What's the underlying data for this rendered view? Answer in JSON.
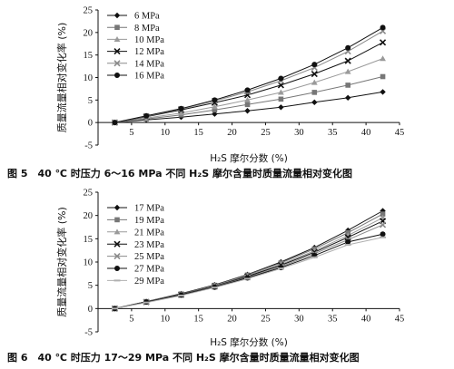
{
  "chart_data": [
    {
      "type": "line",
      "ylabel": "质量流量相对变化率 (%)",
      "xlabel": "H₂S 摩尔分数 (%)",
      "caption": "图 5　40 ℃ 时压力 6～16 MPa 不同 H₂S 摩尔含量时质量流量相对变化图",
      "xlim": [
        0,
        45
      ],
      "ylim": [
        -5,
        25
      ],
      "xticks": [
        5,
        10,
        15,
        20,
        25,
        30,
        35,
        40,
        45
      ],
      "yticks": [
        -5,
        0,
        5,
        10,
        15,
        20,
        25
      ],
      "x": [
        2.5,
        7.2,
        12.4,
        17.4,
        22.3,
        27.3,
        32.3,
        37.3,
        42.5
      ],
      "series": [
        {
          "name": "6 MPa",
          "marker": "diamond",
          "color": "#111111",
          "values": [
            0,
            0.6,
            1.2,
            1.9,
            2.6,
            3.4,
            4.5,
            5.5,
            6.8
          ]
        },
        {
          "name": "8 MPa",
          "marker": "square",
          "color": "#777777",
          "values": [
            0,
            0.8,
            1.7,
            2.8,
            4.0,
            5.2,
            6.7,
            8.3,
            10.2
          ]
        },
        {
          "name": "10 MPa",
          "marker": "triangle",
          "color": "#9a9a9a",
          "values": [
            0,
            1.0,
            2.1,
            3.5,
            5.0,
            6.7,
            8.9,
            11.3,
            14.2
          ]
        },
        {
          "name": "12 MPa",
          "marker": "x",
          "color": "#111111",
          "values": [
            0,
            1.3,
            2.8,
            4.4,
            6.1,
            8.3,
            10.8,
            13.7,
            17.8
          ]
        },
        {
          "name": "14 MPa",
          "marker": "x",
          "color": "#8a8a8a",
          "values": [
            0,
            1.4,
            3.0,
            4.8,
            6.8,
            9.3,
            12.2,
            15.8,
            20.3
          ]
        },
        {
          "name": "16 MPa",
          "marker": "circle",
          "color": "#111111",
          "values": [
            0,
            1.5,
            3.1,
            5.0,
            7.2,
            9.8,
            12.9,
            16.6,
            21.1
          ]
        }
      ]
    },
    {
      "type": "line",
      "ylabel": "质量流量相对变化率 (%)",
      "xlabel": "H₂S 摩尔分数 (%)",
      "caption": "图 6　40 ℃ 时压力 17～29 MPa 不同 H₂S 摩尔含量时质量流量相对变化图",
      "xlim": [
        0,
        45
      ],
      "ylim": [
        -5,
        25
      ],
      "xticks": [
        5,
        10,
        15,
        20,
        25,
        30,
        35,
        40,
        45
      ],
      "yticks": [
        -5,
        0,
        5,
        10,
        15,
        20,
        25
      ],
      "x": [
        2.5,
        7.2,
        12.4,
        17.4,
        22.3,
        27.3,
        32.3,
        37.3,
        42.5
      ],
      "series": [
        {
          "name": "17 MPa",
          "marker": "diamond",
          "color": "#111111",
          "values": [
            0,
            1.5,
            3.2,
            5.1,
            7.3,
            10.0,
            13.1,
            16.8,
            21.0
          ]
        },
        {
          "name": "19 MPa",
          "marker": "square",
          "color": "#777777",
          "values": [
            0,
            1.5,
            3.1,
            5.0,
            7.2,
            9.8,
            12.8,
            16.3,
            20.3
          ]
        },
        {
          "name": "21 MPa",
          "marker": "triangle",
          "color": "#9a9a9a",
          "values": [
            0,
            1.4,
            3.0,
            4.9,
            7.0,
            9.5,
            12.4,
            15.7,
            19.5
          ]
        },
        {
          "name": "23 MPa",
          "marker": "x",
          "color": "#111111",
          "values": [
            0,
            1.4,
            3.0,
            4.8,
            6.9,
            9.3,
            12.1,
            15.3,
            18.8
          ]
        },
        {
          "name": "25 MPa",
          "marker": "x",
          "color": "#8a8a8a",
          "values": [
            0,
            1.4,
            2.9,
            4.7,
            6.7,
            9.0,
            11.8,
            14.8,
            18.0
          ]
        },
        {
          "name": "27 MPa",
          "marker": "circle",
          "color": "#111111",
          "values": [
            0,
            1.4,
            2.9,
            4.6,
            6.6,
            8.8,
            11.4,
            14.3,
            16.0
          ]
        },
        {
          "name": "29 MPa",
          "marker": "dash",
          "color": "#b0b0b0",
          "values": [
            0,
            1.3,
            2.8,
            4.5,
            6.4,
            8.6,
            11.0,
            13.7,
            15.3
          ]
        }
      ]
    }
  ]
}
